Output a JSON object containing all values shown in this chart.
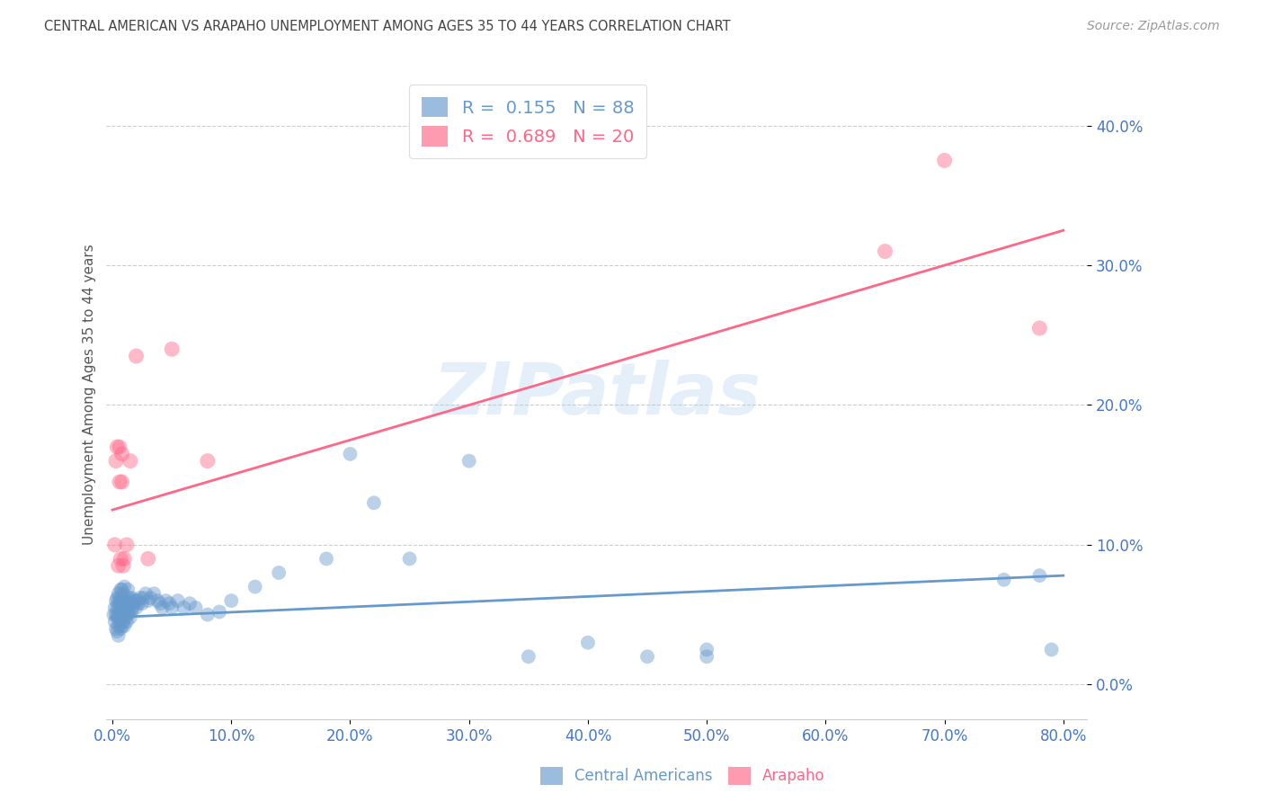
{
  "title": "CENTRAL AMERICAN VS ARAPAHO UNEMPLOYMENT AMONG AGES 35 TO 44 YEARS CORRELATION CHART",
  "source": "Source: ZipAtlas.com",
  "ylabel": "Unemployment Among Ages 35 to 44 years",
  "xlim": [
    -0.005,
    0.82
  ],
  "ylim": [
    -0.025,
    0.44
  ],
  "blue_color": "#6699CC",
  "pink_color": "#FF6688",
  "blue_R": 0.155,
  "blue_N": 88,
  "pink_R": 0.689,
  "pink_N": 20,
  "blue_line_start_x": 0.0,
  "blue_line_start_y": 0.048,
  "blue_line_end_x": 0.8,
  "blue_line_end_y": 0.078,
  "pink_line_start_x": 0.0,
  "pink_line_start_y": 0.125,
  "pink_line_end_x": 0.8,
  "pink_line_end_y": 0.325,
  "watermark": "ZIPatlas",
  "background_color": "#ffffff",
  "grid_color": "#cccccc",
  "title_color": "#444444",
  "axis_label_color": "#555555",
  "tick_label_color": "#4477CC",
  "source_color": "#999999",
  "xlabel_vals": [
    0.0,
    0.1,
    0.2,
    0.3,
    0.4,
    0.5,
    0.6,
    0.7,
    0.8
  ],
  "xlabel_ticks": [
    "0.0%",
    "10.0%",
    "20.0%",
    "30.0%",
    "40.0%",
    "50.0%",
    "60.0%",
    "70.0%",
    "80.0%"
  ],
  "ylabel_vals": [
    0.0,
    0.1,
    0.2,
    0.3,
    0.4
  ],
  "ylabel_ticks": [
    "0.0%",
    "10.0%",
    "20.0%",
    "30.0%",
    "40.0%"
  ],
  "blue_scatter_x": [
    0.001,
    0.002,
    0.002,
    0.003,
    0.003,
    0.003,
    0.004,
    0.004,
    0.004,
    0.004,
    0.005,
    0.005,
    0.005,
    0.005,
    0.005,
    0.006,
    0.006,
    0.006,
    0.006,
    0.007,
    0.007,
    0.007,
    0.007,
    0.008,
    0.008,
    0.008,
    0.008,
    0.009,
    0.009,
    0.009,
    0.01,
    0.01,
    0.01,
    0.01,
    0.011,
    0.011,
    0.012,
    0.012,
    0.013,
    0.013,
    0.013,
    0.014,
    0.014,
    0.015,
    0.015,
    0.016,
    0.016,
    0.017,
    0.018,
    0.019,
    0.02,
    0.021,
    0.022,
    0.023,
    0.025,
    0.026,
    0.028,
    0.03,
    0.032,
    0.035,
    0.038,
    0.04,
    0.042,
    0.045,
    0.048,
    0.05,
    0.055,
    0.06,
    0.065,
    0.07,
    0.08,
    0.09,
    0.1,
    0.12,
    0.14,
    0.18,
    0.2,
    0.22,
    0.25,
    0.3,
    0.35,
    0.4,
    0.45,
    0.5,
    0.5,
    0.75,
    0.78,
    0.79
  ],
  "blue_scatter_y": [
    0.05,
    0.045,
    0.055,
    0.04,
    0.05,
    0.06,
    0.038,
    0.048,
    0.055,
    0.062,
    0.042,
    0.05,
    0.058,
    0.065,
    0.035,
    0.045,
    0.055,
    0.062,
    0.048,
    0.04,
    0.052,
    0.06,
    0.068,
    0.042,
    0.052,
    0.06,
    0.068,
    0.045,
    0.055,
    0.065,
    0.042,
    0.052,
    0.06,
    0.07,
    0.048,
    0.058,
    0.045,
    0.055,
    0.05,
    0.06,
    0.068,
    0.052,
    0.062,
    0.048,
    0.058,
    0.052,
    0.062,
    0.055,
    0.058,
    0.06,
    0.055,
    0.06,
    0.058,
    0.062,
    0.058,
    0.062,
    0.065,
    0.06,
    0.062,
    0.065,
    0.06,
    0.058,
    0.055,
    0.06,
    0.058,
    0.055,
    0.06,
    0.055,
    0.058,
    0.055,
    0.05,
    0.052,
    0.06,
    0.07,
    0.08,
    0.09,
    0.165,
    0.13,
    0.09,
    0.16,
    0.02,
    0.03,
    0.02,
    0.02,
    0.025,
    0.075,
    0.078,
    0.025
  ],
  "pink_scatter_x": [
    0.002,
    0.003,
    0.004,
    0.005,
    0.006,
    0.006,
    0.007,
    0.008,
    0.008,
    0.009,
    0.01,
    0.012,
    0.015,
    0.02,
    0.03,
    0.05,
    0.08,
    0.65,
    0.7,
    0.78
  ],
  "pink_scatter_y": [
    0.1,
    0.16,
    0.17,
    0.085,
    0.145,
    0.17,
    0.09,
    0.145,
    0.165,
    0.085,
    0.09,
    0.1,
    0.16,
    0.235,
    0.09,
    0.24,
    0.16,
    0.31,
    0.375,
    0.255
  ]
}
